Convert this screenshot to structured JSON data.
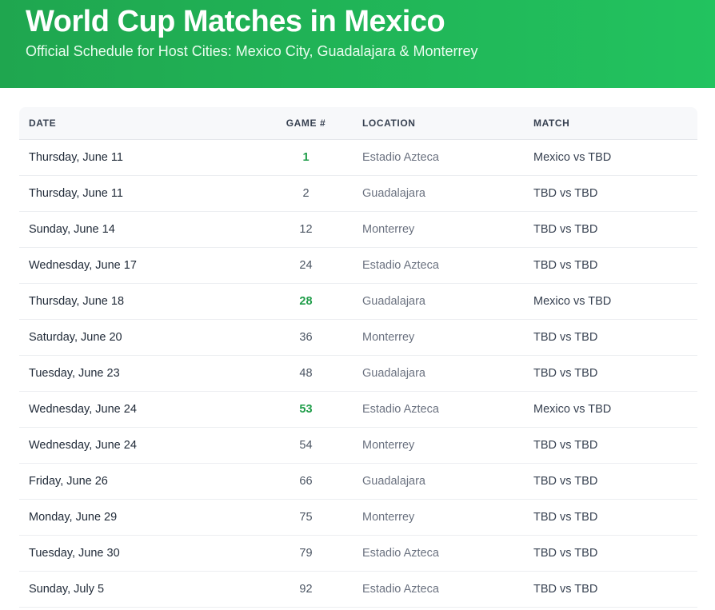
{
  "header": {
    "title": "World Cup Matches in Mexico",
    "subtitle": "Official Schedule for Host Cities: Mexico City, Guadalajara & Monterrey"
  },
  "colors": {
    "header_green_start": "#1fa64f",
    "header_green_end": "#22c35f",
    "host_game_number": "#1f9d49"
  },
  "table": {
    "columns": [
      "DATE",
      "GAME #",
      "LOCATION",
      "MATCH"
    ],
    "rows": [
      {
        "date": "Thursday, June 11",
        "game": "1",
        "location": "Estadio Azteca",
        "match": "Mexico vs TBD",
        "host": true
      },
      {
        "date": "Thursday, June 11",
        "game": "2",
        "location": "Guadalajara",
        "match": "TBD vs TBD",
        "host": false
      },
      {
        "date": "Sunday, June 14",
        "game": "12",
        "location": "Monterrey",
        "match": "TBD vs TBD",
        "host": false
      },
      {
        "date": "Wednesday, June 17",
        "game": "24",
        "location": "Estadio Azteca",
        "match": "TBD vs TBD",
        "host": false
      },
      {
        "date": "Thursday, June 18",
        "game": "28",
        "location": "Guadalajara",
        "match": "Mexico vs TBD",
        "host": true
      },
      {
        "date": "Saturday, June 20",
        "game": "36",
        "location": "Monterrey",
        "match": "TBD vs TBD",
        "host": false
      },
      {
        "date": "Tuesday, June 23",
        "game": "48",
        "location": "Guadalajara",
        "match": "TBD vs TBD",
        "host": false
      },
      {
        "date": "Wednesday, June 24",
        "game": "53",
        "location": "Estadio Azteca",
        "match": "Mexico vs TBD",
        "host": true
      },
      {
        "date": "Wednesday, June 24",
        "game": "54",
        "location": "Monterrey",
        "match": "TBD vs TBD",
        "host": false
      },
      {
        "date": "Friday, June 26",
        "game": "66",
        "location": "Guadalajara",
        "match": "TBD vs TBD",
        "host": false
      },
      {
        "date": "Monday, June 29",
        "game": "75",
        "location": "Monterrey",
        "match": "TBD vs TBD",
        "host": false
      },
      {
        "date": "Tuesday, June 30",
        "game": "79",
        "location": "Estadio Azteca",
        "match": "TBD vs TBD",
        "host": false
      },
      {
        "date": "Sunday, July 5",
        "game": "92",
        "location": "Estadio Azteca",
        "match": "TBD vs TBD",
        "host": false
      }
    ]
  }
}
